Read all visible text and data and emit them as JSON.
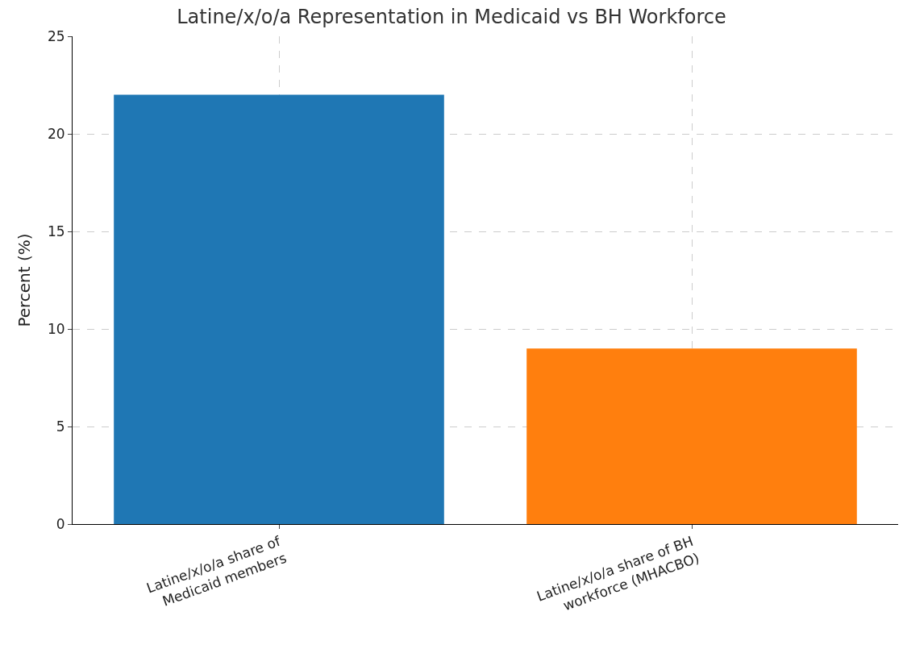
{
  "chart_data": {
    "type": "bar",
    "title": "Latine/x/o/a Representation in Medicaid vs BH Workforce",
    "ylabel": "Percent (%)",
    "categories": [
      "Latine/x/o/a share of\nMedicaid members",
      "Latine/x/o/a share of BH\nworkforce (MHACBO)"
    ],
    "values": [
      22,
      9
    ],
    "colors": [
      "#1f77b4",
      "#ff7f0e"
    ],
    "ylim": [
      0,
      25
    ],
    "yticks": [
      0,
      5,
      10,
      15,
      20,
      25
    ],
    "grid": true,
    "line_style": "dashed"
  }
}
